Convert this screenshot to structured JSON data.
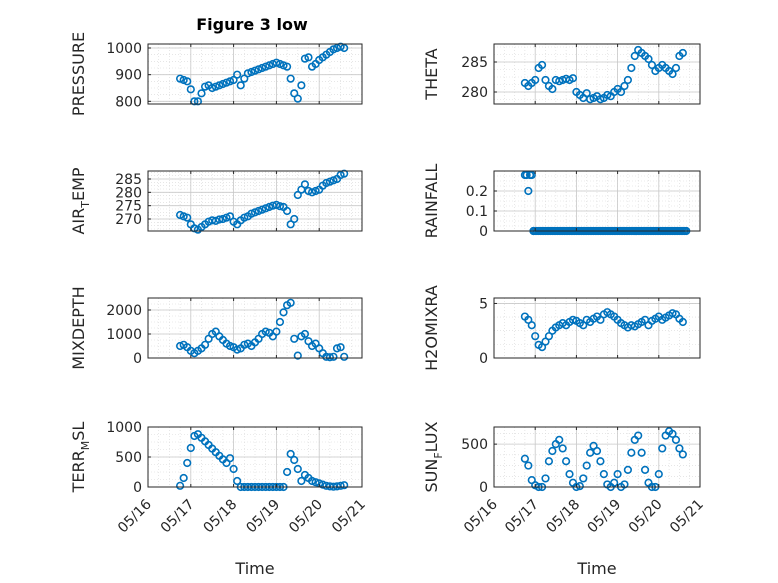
{
  "figure": {
    "title": "Figure 3 low",
    "marker_color": "#0072BD",
    "xlabel": "Time"
  },
  "chart_data": [
    {
      "type": "scatter",
      "name": "pressure",
      "ylabel": "PRESSURE",
      "title": "Figure 3 low",
      "xlim": [
        "05/16",
        "05/21"
      ],
      "xticks": [
        "05/16",
        "05/17",
        "05/18",
        "05/19",
        "05/20",
        "05/21"
      ],
      "show_xtick_labels": false,
      "ylim": [
        790,
        1015
      ],
      "yticks": [
        800,
        900,
        1000
      ],
      "grid": true,
      "minor_grid": true,
      "series": [
        {
          "x": [
            "05/16 18:00",
            "05/16 20:00",
            "05/16 22:00",
            "05/17 00:00",
            "05/17 02:00",
            "05/17 04:00",
            "05/17 06:00",
            "05/17 08:00",
            "05/17 10:00",
            "05/17 12:00",
            "05/17 14:00",
            "05/17 16:00",
            "05/17 18:00",
            "05/17 20:00",
            "05/17 22:00",
            "05/18 00:00",
            "05/18 02:00",
            "05/18 04:00",
            "05/18 06:00",
            "05/18 08:00",
            "05/18 10:00",
            "05/18 12:00",
            "05/18 14:00",
            "05/18 16:00",
            "05/18 18:00",
            "05/18 20:00",
            "05/18 22:00",
            "05/19 00:00",
            "05/19 02:00",
            "05/19 04:00",
            "05/19 06:00",
            "05/19 08:00",
            "05/19 10:00",
            "05/19 12:00",
            "05/19 14:00",
            "05/19 16:00",
            "05/19 18:00",
            "05/19 20:00",
            "05/19 22:00",
            "05/20 00:00",
            "05/20 02:00",
            "05/20 04:00",
            "05/20 06:00",
            "05/20 08:00",
            "05/20 10:00",
            "05/20 12:00",
            "05/20 14:00"
          ],
          "y": [
            885,
            880,
            875,
            845,
            800,
            800,
            830,
            855,
            860,
            850,
            855,
            860,
            865,
            870,
            875,
            880,
            900,
            860,
            885,
            905,
            910,
            915,
            920,
            925,
            930,
            935,
            940,
            945,
            940,
            935,
            930,
            885,
            830,
            810,
            860,
            960,
            965,
            930,
            940,
            955,
            965,
            975,
            985,
            995,
            1000,
            1005,
            1000
          ]
        }
      ]
    },
    {
      "type": "scatter",
      "name": "theta",
      "ylabel": "THETA",
      "xlim": [
        "05/16",
        "05/21"
      ],
      "xticks": [
        "05/16",
        "05/17",
        "05/18",
        "05/19",
        "05/20",
        "05/21"
      ],
      "show_xtick_labels": false,
      "ylim": [
        278,
        288
      ],
      "yticks": [
        280,
        285
      ],
      "grid": true,
      "minor_grid": true,
      "series": [
        {
          "x": [
            "05/16 18:00",
            "05/16 20:00",
            "05/16 22:00",
            "05/17 00:00",
            "05/17 02:00",
            "05/17 04:00",
            "05/17 06:00",
            "05/17 08:00",
            "05/17 10:00",
            "05/17 12:00",
            "05/17 14:00",
            "05/17 16:00",
            "05/17 18:00",
            "05/17 20:00",
            "05/17 22:00",
            "05/18 00:00",
            "05/18 02:00",
            "05/18 04:00",
            "05/18 06:00",
            "05/18 08:00",
            "05/18 10:00",
            "05/18 12:00",
            "05/18 14:00",
            "05/18 16:00",
            "05/18 18:00",
            "05/18 20:00",
            "05/18 22:00",
            "05/19 00:00",
            "05/19 02:00",
            "05/19 04:00",
            "05/19 06:00",
            "05/19 08:00",
            "05/19 10:00",
            "05/19 12:00",
            "05/19 14:00",
            "05/19 16:00",
            "05/19 18:00",
            "05/19 20:00",
            "05/19 22:00",
            "05/20 00:00",
            "05/20 02:00",
            "05/20 04:00",
            "05/20 06:00",
            "05/20 08:00",
            "05/20 10:00",
            "05/20 12:00",
            "05/20 14:00"
          ],
          "y": [
            281.5,
            281,
            281.5,
            282,
            284,
            284.5,
            282,
            281,
            280.5,
            282,
            281.8,
            282,
            282.2,
            282,
            282.3,
            280,
            279.5,
            279,
            279.8,
            278.8,
            279,
            279.3,
            278.8,
            279,
            279.5,
            279.3,
            280,
            280.5,
            280,
            281,
            282,
            284,
            286,
            287,
            286.5,
            286,
            285.5,
            284.5,
            283.5,
            284,
            284.5,
            284,
            283.5,
            283,
            284,
            286,
            286.5
          ]
        }
      ]
    },
    {
      "type": "scatter",
      "name": "air_temp",
      "ylabel": "AIR_TEMP",
      "xlim": [
        "05/16",
        "05/21"
      ],
      "xticks": [
        "05/16",
        "05/17",
        "05/18",
        "05/19",
        "05/20",
        "05/21"
      ],
      "show_xtick_labels": false,
      "ylim": [
        265.5,
        288
      ],
      "yticks": [
        270,
        275,
        280,
        285
      ],
      "grid": true,
      "minor_grid": true,
      "series": [
        {
          "x": [
            "05/16 18:00",
            "05/16 20:00",
            "05/16 22:00",
            "05/17 00:00",
            "05/17 02:00",
            "05/17 04:00",
            "05/17 06:00",
            "05/17 08:00",
            "05/17 10:00",
            "05/17 12:00",
            "05/17 14:00",
            "05/17 16:00",
            "05/17 18:00",
            "05/17 20:00",
            "05/17 22:00",
            "05/18 00:00",
            "05/18 02:00",
            "05/18 04:00",
            "05/18 06:00",
            "05/18 08:00",
            "05/18 10:00",
            "05/18 12:00",
            "05/18 14:00",
            "05/18 16:00",
            "05/18 18:00",
            "05/18 20:00",
            "05/18 22:00",
            "05/19 00:00",
            "05/19 02:00",
            "05/19 04:00",
            "05/19 06:00",
            "05/19 08:00",
            "05/19 10:00",
            "05/19 12:00",
            "05/19 14:00",
            "05/19 16:00",
            "05/19 18:00",
            "05/19 20:00",
            "05/19 22:00",
            "05/20 00:00",
            "05/20 02:00",
            "05/20 04:00",
            "05/20 06:00",
            "05/20 08:00",
            "05/20 10:00",
            "05/20 12:00",
            "05/20 14:00"
          ],
          "y": [
            271.5,
            271,
            270.5,
            268,
            266.5,
            266,
            267,
            268,
            269,
            269.5,
            269.3,
            269.8,
            270,
            270.5,
            271,
            269,
            268,
            269.5,
            270.5,
            271,
            272,
            272.5,
            273,
            273.5,
            274,
            274.5,
            275,
            275.3,
            274.8,
            274.5,
            273,
            268,
            270,
            279,
            281,
            283,
            280.5,
            280,
            280.5,
            281,
            282.5,
            283.5,
            284,
            284.5,
            285,
            286.5,
            287
          ]
        }
      ]
    },
    {
      "type": "scatter",
      "name": "rainfall",
      "ylabel": "RAINFALL",
      "xlim": [
        "05/16",
        "05/21"
      ],
      "xticks": [
        "05/16",
        "05/17",
        "05/18",
        "05/19",
        "05/20",
        "05/21"
      ],
      "show_xtick_labels": false,
      "ylim": [
        0,
        0.3
      ],
      "yticks": [
        0,
        0.1,
        0.2
      ],
      "grid": true,
      "minor_grid": true,
      "series": [
        {
          "x": [
            "05/16 18:00",
            "05/16 19:00",
            "05/16 20:00",
            "05/16 21:00",
            "05/16 22:00",
            "05/16 23:00"
          ],
          "y": [
            0.28,
            0.28,
            0.2,
            0.28,
            0.28,
            0
          ],
          "constant_zero_from": "05/16 23:00",
          "constant_zero_to": "05/20 16:00"
        }
      ]
    },
    {
      "type": "scatter",
      "name": "mixdepth",
      "ylabel": "MIXDEPTH",
      "xlim": [
        "05/16",
        "05/21"
      ],
      "xticks": [
        "05/16",
        "05/17",
        "05/18",
        "05/19",
        "05/20",
        "05/21"
      ],
      "show_xtick_labels": false,
      "ylim": [
        0,
        2500
      ],
      "yticks": [
        0,
        1000,
        2000
      ],
      "grid": true,
      "minor_grid": true,
      "series": [
        {
          "x": [
            "05/16 18:00",
            "05/16 20:00",
            "05/16 22:00",
            "05/17 00:00",
            "05/17 02:00",
            "05/17 04:00",
            "05/17 06:00",
            "05/17 08:00",
            "05/17 10:00",
            "05/17 12:00",
            "05/17 14:00",
            "05/17 16:00",
            "05/17 18:00",
            "05/17 20:00",
            "05/17 22:00",
            "05/18 00:00",
            "05/18 02:00",
            "05/18 04:00",
            "05/18 06:00",
            "05/18 08:00",
            "05/18 10:00",
            "05/18 12:00",
            "05/18 14:00",
            "05/18 16:00",
            "05/18 18:00",
            "05/18 20:00",
            "05/18 22:00",
            "05/19 00:00",
            "05/19 02:00",
            "05/19 04:00",
            "05/19 06:00",
            "05/19 08:00",
            "05/19 10:00",
            "05/19 12:00",
            "05/19 14:00",
            "05/19 16:00",
            "05/19 18:00",
            "05/19 20:00",
            "05/19 22:00",
            "05/20 00:00",
            "05/20 02:00",
            "05/20 04:00",
            "05/20 06:00",
            "05/20 08:00",
            "05/20 10:00",
            "05/20 12:00",
            "05/20 14:00"
          ],
          "y": [
            500,
            550,
            450,
            300,
            200,
            300,
            400,
            550,
            800,
            1000,
            1100,
            900,
            750,
            600,
            500,
            450,
            350,
            400,
            550,
            600,
            500,
            650,
            800,
            1000,
            1100,
            1050,
            900,
            1100,
            1500,
            1900,
            2200,
            2300,
            800,
            100,
            900,
            1000,
            700,
            500,
            600,
            400,
            200,
            50,
            30,
            50,
            400,
            450,
            50
          ]
        }
      ]
    },
    {
      "type": "scatter",
      "name": "h2omixra",
      "ylabel": "H2OMIXRA",
      "xlim": [
        "05/16",
        "05/21"
      ],
      "xticks": [
        "05/16",
        "05/17",
        "05/18",
        "05/19",
        "05/20",
        "05/21"
      ],
      "show_xtick_labels": false,
      "ylim": [
        0,
        5.5
      ],
      "yticks": [
        0,
        5
      ],
      "grid": true,
      "minor_grid": true,
      "series": [
        {
          "x": [
            "05/16 18:00",
            "05/16 20:00",
            "05/16 22:00",
            "05/17 00:00",
            "05/17 02:00",
            "05/17 04:00",
            "05/17 06:00",
            "05/17 08:00",
            "05/17 10:00",
            "05/17 12:00",
            "05/17 14:00",
            "05/17 16:00",
            "05/17 18:00",
            "05/17 20:00",
            "05/17 22:00",
            "05/18 00:00",
            "05/18 02:00",
            "05/18 04:00",
            "05/18 06:00",
            "05/18 08:00",
            "05/18 10:00",
            "05/18 12:00",
            "05/18 14:00",
            "05/18 16:00",
            "05/18 18:00",
            "05/18 20:00",
            "05/18 22:00",
            "05/19 00:00",
            "05/19 02:00",
            "05/19 04:00",
            "05/19 06:00",
            "05/19 08:00",
            "05/19 10:00",
            "05/19 12:00",
            "05/19 14:00",
            "05/19 16:00",
            "05/19 18:00",
            "05/19 20:00",
            "05/19 22:00",
            "05/20 00:00",
            "05/20 02:00",
            "05/20 04:00",
            "05/20 06:00",
            "05/20 08:00",
            "05/20 10:00",
            "05/20 12:00",
            "05/20 14:00"
          ],
          "y": [
            3.8,
            3.5,
            3,
            2,
            1.2,
            1,
            1.5,
            2,
            2.5,
            2.8,
            3,
            3.2,
            3,
            3.3,
            3.5,
            3.4,
            3.2,
            3,
            3.5,
            3.3,
            3.6,
            3.8,
            3.5,
            4,
            4.2,
            4,
            3.8,
            3.5,
            3.2,
            3,
            2.8,
            3,
            2.9,
            3.1,
            3.3,
            3.5,
            3,
            3.4,
            3.6,
            3.8,
            3.5,
            3.7,
            3.9,
            4.1,
            4,
            3.6,
            3.3
          ]
        }
      ]
    },
    {
      "type": "scatter",
      "name": "terr_msl",
      "ylabel": "TERR_MSL",
      "xlabel": "Time",
      "xlim": [
        "05/16",
        "05/21"
      ],
      "xticks": [
        "05/16",
        "05/17",
        "05/18",
        "05/19",
        "05/20",
        "05/21"
      ],
      "show_xtick_labels": true,
      "ylim": [
        0,
        1000
      ],
      "yticks": [
        0,
        500,
        1000
      ],
      "grid": true,
      "minor_grid": true,
      "series": [
        {
          "x": [
            "05/16 18:00",
            "05/16 20:00",
            "05/16 22:00",
            "05/17 00:00",
            "05/17 02:00",
            "05/17 04:00",
            "05/17 06:00",
            "05/17 08:00",
            "05/17 10:00",
            "05/17 12:00",
            "05/17 14:00",
            "05/17 16:00",
            "05/17 18:00",
            "05/17 20:00",
            "05/17 22:00",
            "05/18 00:00",
            "05/18 02:00",
            "05/18 04:00",
            "05/18 06:00",
            "05/18 08:00",
            "05/18 10:00",
            "05/18 12:00",
            "05/18 14:00",
            "05/18 16:00",
            "05/18 18:00",
            "05/18 20:00",
            "05/18 22:00",
            "05/19 00:00",
            "05/19 02:00",
            "05/19 04:00",
            "05/19 06:00",
            "05/19 08:00",
            "05/19 10:00",
            "05/19 12:00",
            "05/19 14:00",
            "05/19 16:00",
            "05/19 18:00",
            "05/19 20:00",
            "05/19 22:00",
            "05/20 00:00",
            "05/20 02:00",
            "05/20 04:00",
            "05/20 06:00",
            "05/20 08:00",
            "05/20 10:00",
            "05/20 12:00",
            "05/20 14:00"
          ],
          "y": [
            20,
            150,
            400,
            650,
            850,
            880,
            820,
            760,
            700,
            640,
            580,
            520,
            460,
            400,
            480,
            300,
            100,
            0,
            0,
            0,
            0,
            0,
            0,
            0,
            0,
            0,
            0,
            0,
            0,
            0,
            250,
            550,
            450,
            300,
            100,
            200,
            150,
            100,
            80,
            60,
            40,
            20,
            10,
            5,
            10,
            20,
            30
          ]
        }
      ]
    },
    {
      "type": "scatter",
      "name": "sun_flux",
      "ylabel": "SUN_FLUX",
      "xlabel": "Time",
      "xlim": [
        "05/16",
        "05/21"
      ],
      "xticks": [
        "05/16",
        "05/17",
        "05/18",
        "05/19",
        "05/20",
        "05/21"
      ],
      "show_xtick_labels": true,
      "ylim": [
        0,
        700
      ],
      "yticks": [
        0,
        500
      ],
      "grid": true,
      "minor_grid": true,
      "series": [
        {
          "x": [
            "05/16 18:00",
            "05/16 20:00",
            "05/16 22:00",
            "05/17 00:00",
            "05/17 02:00",
            "05/17 04:00",
            "05/17 06:00",
            "05/17 08:00",
            "05/17 10:00",
            "05/17 12:00",
            "05/17 14:00",
            "05/17 16:00",
            "05/17 18:00",
            "05/17 20:00",
            "05/17 22:00",
            "05/18 00:00",
            "05/18 02:00",
            "05/18 04:00",
            "05/18 06:00",
            "05/18 08:00",
            "05/18 10:00",
            "05/18 12:00",
            "05/18 14:00",
            "05/18 16:00",
            "05/18 18:00",
            "05/18 20:00",
            "05/18 22:00",
            "05/19 00:00",
            "05/19 02:00",
            "05/19 04:00",
            "05/19 06:00",
            "05/19 08:00",
            "05/19 10:00",
            "05/19 12:00",
            "05/19 14:00",
            "05/19 16:00",
            "05/19 18:00",
            "05/19 20:00",
            "05/19 22:00",
            "05/20 00:00",
            "05/20 02:00",
            "05/20 04:00",
            "05/20 06:00",
            "05/20 08:00",
            "05/20 10:00",
            "05/20 12:00",
            "05/20 14:00"
          ],
          "y": [
            330,
            250,
            80,
            20,
            0,
            0,
            100,
            300,
            420,
            500,
            550,
            450,
            300,
            150,
            50,
            0,
            10,
            100,
            250,
            400,
            480,
            420,
            300,
            150,
            30,
            0,
            50,
            150,
            0,
            30,
            200,
            400,
            550,
            600,
            400,
            200,
            50,
            0,
            0,
            150,
            450,
            600,
            650,
            620,
            550,
            450,
            380
          ]
        }
      ]
    }
  ]
}
